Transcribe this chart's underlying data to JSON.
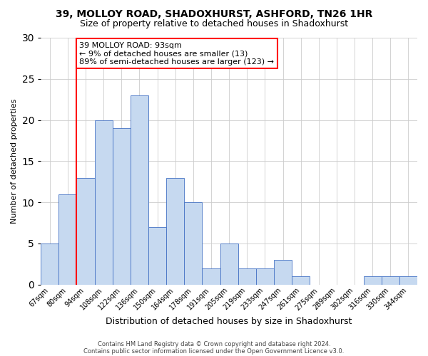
{
  "title1": "39, MOLLOY ROAD, SHADOXHURST, ASHFORD, TN26 1HR",
  "title2": "Size of property relative to detached houses in Shadoxhurst",
  "xlabel": "Distribution of detached houses by size in Shadoxhurst",
  "ylabel": "Number of detached properties",
  "footer1": "Contains HM Land Registry data © Crown copyright and database right 2024.",
  "footer2": "Contains public sector information licensed under the Open Government Licence v3.0.",
  "bar_labels": [
    "67sqm",
    "80sqm",
    "94sqm",
    "108sqm",
    "122sqm",
    "136sqm",
    "150sqm",
    "164sqm",
    "178sqm",
    "191sqm",
    "205sqm",
    "219sqm",
    "233sqm",
    "247sqm",
    "261sqm",
    "275sqm",
    "289sqm",
    "302sqm",
    "316sqm",
    "330sqm",
    "344sqm"
  ],
  "bar_values": [
    5,
    11,
    13,
    20,
    19,
    23,
    7,
    13,
    10,
    2,
    5,
    2,
    2,
    3,
    1,
    0,
    0,
    0,
    1,
    1,
    1
  ],
  "bar_color": "#c6d9f0",
  "bar_edge_color": "#4472c4",
  "annotation_line1": "39 MOLLOY ROAD: 93sqm",
  "annotation_line2": "← 9% of detached houses are smaller (13)",
  "annotation_line3": "89% of semi-detached houses are larger (123) →",
  "annotation_box_color": "#ffffff",
  "annotation_box_edge_color": "#ff0000",
  "red_line_bar_index": 2,
  "ylim": [
    0,
    30
  ],
  "yticks": [
    0,
    5,
    10,
    15,
    20,
    25,
    30
  ],
  "background_color": "#ffffff",
  "grid_color": "#cccccc",
  "title1_fontsize": 10,
  "title2_fontsize": 9,
  "xlabel_fontsize": 9,
  "ylabel_fontsize": 8,
  "tick_fontsize": 7,
  "footer_fontsize": 6,
  "ann_fontsize": 8
}
